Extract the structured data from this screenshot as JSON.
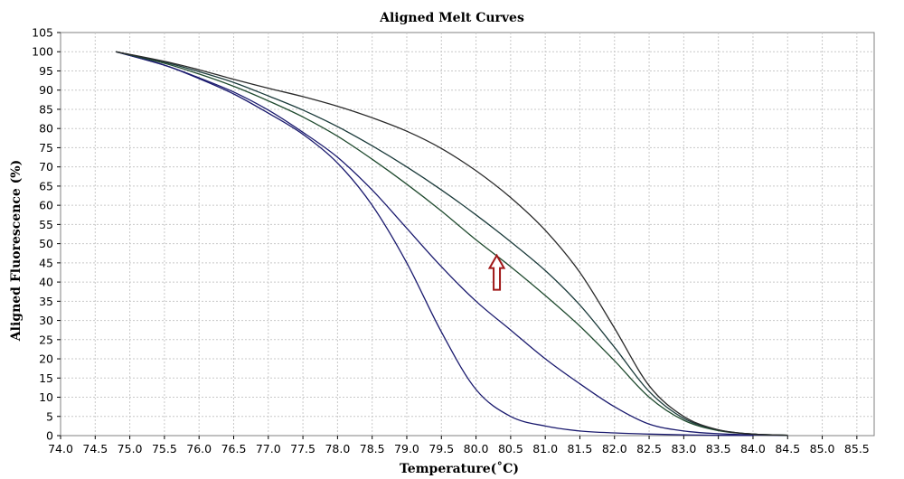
{
  "chart_data": {
    "type": "line",
    "title": "Aligned Melt Curves",
    "xlabel": "Temperature(˚C)",
    "ylabel": "Aligned Fluorescence (%)",
    "xlim": [
      74.0,
      85.75
    ],
    "ylim": [
      0,
      105
    ],
    "xticks": [
      "74.0",
      "74.5",
      "75.0",
      "75.5",
      "76.0",
      "76.5",
      "77.0",
      "77.5",
      "78.0",
      "78.5",
      "79.0",
      "79.5",
      "80.0",
      "80.5",
      "81.0",
      "81.5",
      "82.0",
      "82.5",
      "83.0",
      "83.5",
      "84.0",
      "84.5",
      "85.0",
      "85.5"
    ],
    "yticks": [
      "0",
      "5",
      "10",
      "15",
      "20",
      "25",
      "30",
      "35",
      "40",
      "45",
      "50",
      "55",
      "60",
      "65",
      "70",
      "75",
      "80",
      "85",
      "90",
      "95",
      "100",
      "105"
    ],
    "grid": true,
    "series": [
      {
        "color": "#1a1a6e",
        "points": [
          [
            74.8,
            100
          ],
          [
            75.5,
            96.5
          ],
          [
            76.0,
            93
          ],
          [
            76.5,
            89
          ],
          [
            77.0,
            84
          ],
          [
            77.5,
            78.5
          ],
          [
            78.0,
            71
          ],
          [
            78.5,
            60
          ],
          [
            79.0,
            45
          ],
          [
            79.5,
            27
          ],
          [
            80.0,
            12
          ],
          [
            80.5,
            5
          ],
          [
            81.0,
            2.5
          ],
          [
            81.5,
            1.2
          ],
          [
            82.0,
            0.7
          ],
          [
            82.5,
            0.4
          ],
          [
            83.0,
            0.2
          ],
          [
            83.5,
            0.1
          ],
          [
            84.0,
            0.05
          ]
        ]
      },
      {
        "color": "#1a1a6e",
        "points": [
          [
            74.8,
            100
          ],
          [
            75.5,
            96.5
          ],
          [
            76.0,
            93.2
          ],
          [
            76.5,
            89.5
          ],
          [
            77.0,
            84.8
          ],
          [
            77.5,
            79
          ],
          [
            78.0,
            72.5
          ],
          [
            78.5,
            64
          ],
          [
            79.0,
            54
          ],
          [
            79.5,
            44
          ],
          [
            80.0,
            35
          ],
          [
            80.5,
            27.5
          ],
          [
            81.0,
            20
          ],
          [
            81.5,
            13.5
          ],
          [
            82.0,
            7.5
          ],
          [
            82.5,
            3
          ],
          [
            83.0,
            1.2
          ],
          [
            83.5,
            0.5
          ],
          [
            84.0,
            0.2
          ],
          [
            84.5,
            0.05
          ]
        ]
      },
      {
        "color": "#1f4a2e",
        "points": [
          [
            74.8,
            100
          ],
          [
            75.5,
            97
          ],
          [
            76.0,
            94.2
          ],
          [
            76.5,
            91
          ],
          [
            77.0,
            87.2
          ],
          [
            77.5,
            83
          ],
          [
            78.0,
            78
          ],
          [
            78.5,
            72
          ],
          [
            79.0,
            65.5
          ],
          [
            79.5,
            58.5
          ],
          [
            80.0,
            51
          ],
          [
            80.5,
            44
          ],
          [
            81.0,
            36.5
          ],
          [
            81.5,
            28.5
          ],
          [
            82.0,
            19.5
          ],
          [
            82.5,
            10
          ],
          [
            83.0,
            4
          ],
          [
            83.5,
            1.3
          ],
          [
            84.0,
            0.4
          ],
          [
            84.5,
            0.1
          ]
        ]
      },
      {
        "color": "#1a3a3a",
        "points": [
          [
            74.8,
            100
          ],
          [
            75.5,
            97.3
          ],
          [
            76.0,
            94.8
          ],
          [
            76.5,
            92
          ],
          [
            77.0,
            88.5
          ],
          [
            77.5,
            84.8
          ],
          [
            78.0,
            80.5
          ],
          [
            78.5,
            75.5
          ],
          [
            79.0,
            70
          ],
          [
            79.5,
            64
          ],
          [
            80.0,
            57.5
          ],
          [
            80.5,
            50.5
          ],
          [
            81.0,
            43
          ],
          [
            81.5,
            34
          ],
          [
            82.0,
            23
          ],
          [
            82.5,
            11.5
          ],
          [
            83.0,
            4.5
          ],
          [
            83.5,
            1.5
          ],
          [
            84.0,
            0.4
          ],
          [
            84.5,
            0.1
          ]
        ]
      },
      {
        "color": "#2a2a2a",
        "points": [
          [
            74.8,
            100
          ],
          [
            75.5,
            97.5
          ],
          [
            76.0,
            95.3
          ],
          [
            76.5,
            92.8
          ],
          [
            77.0,
            90.5
          ],
          [
            77.5,
            88.3
          ],
          [
            78.0,
            85.8
          ],
          [
            78.5,
            82.8
          ],
          [
            79.0,
            79.3
          ],
          [
            79.5,
            74.8
          ],
          [
            80.0,
            69
          ],
          [
            80.5,
            62
          ],
          [
            81.0,
            53.5
          ],
          [
            81.5,
            42.5
          ],
          [
            82.0,
            28
          ],
          [
            82.5,
            13
          ],
          [
            83.0,
            5
          ],
          [
            83.5,
            1.5
          ],
          [
            84.0,
            0.4
          ],
          [
            84.5,
            0.1
          ]
        ]
      }
    ],
    "annotations": [
      {
        "type": "arrow",
        "direction": "up",
        "x": 80.3,
        "y": 38,
        "color": "#a01818"
      }
    ]
  }
}
